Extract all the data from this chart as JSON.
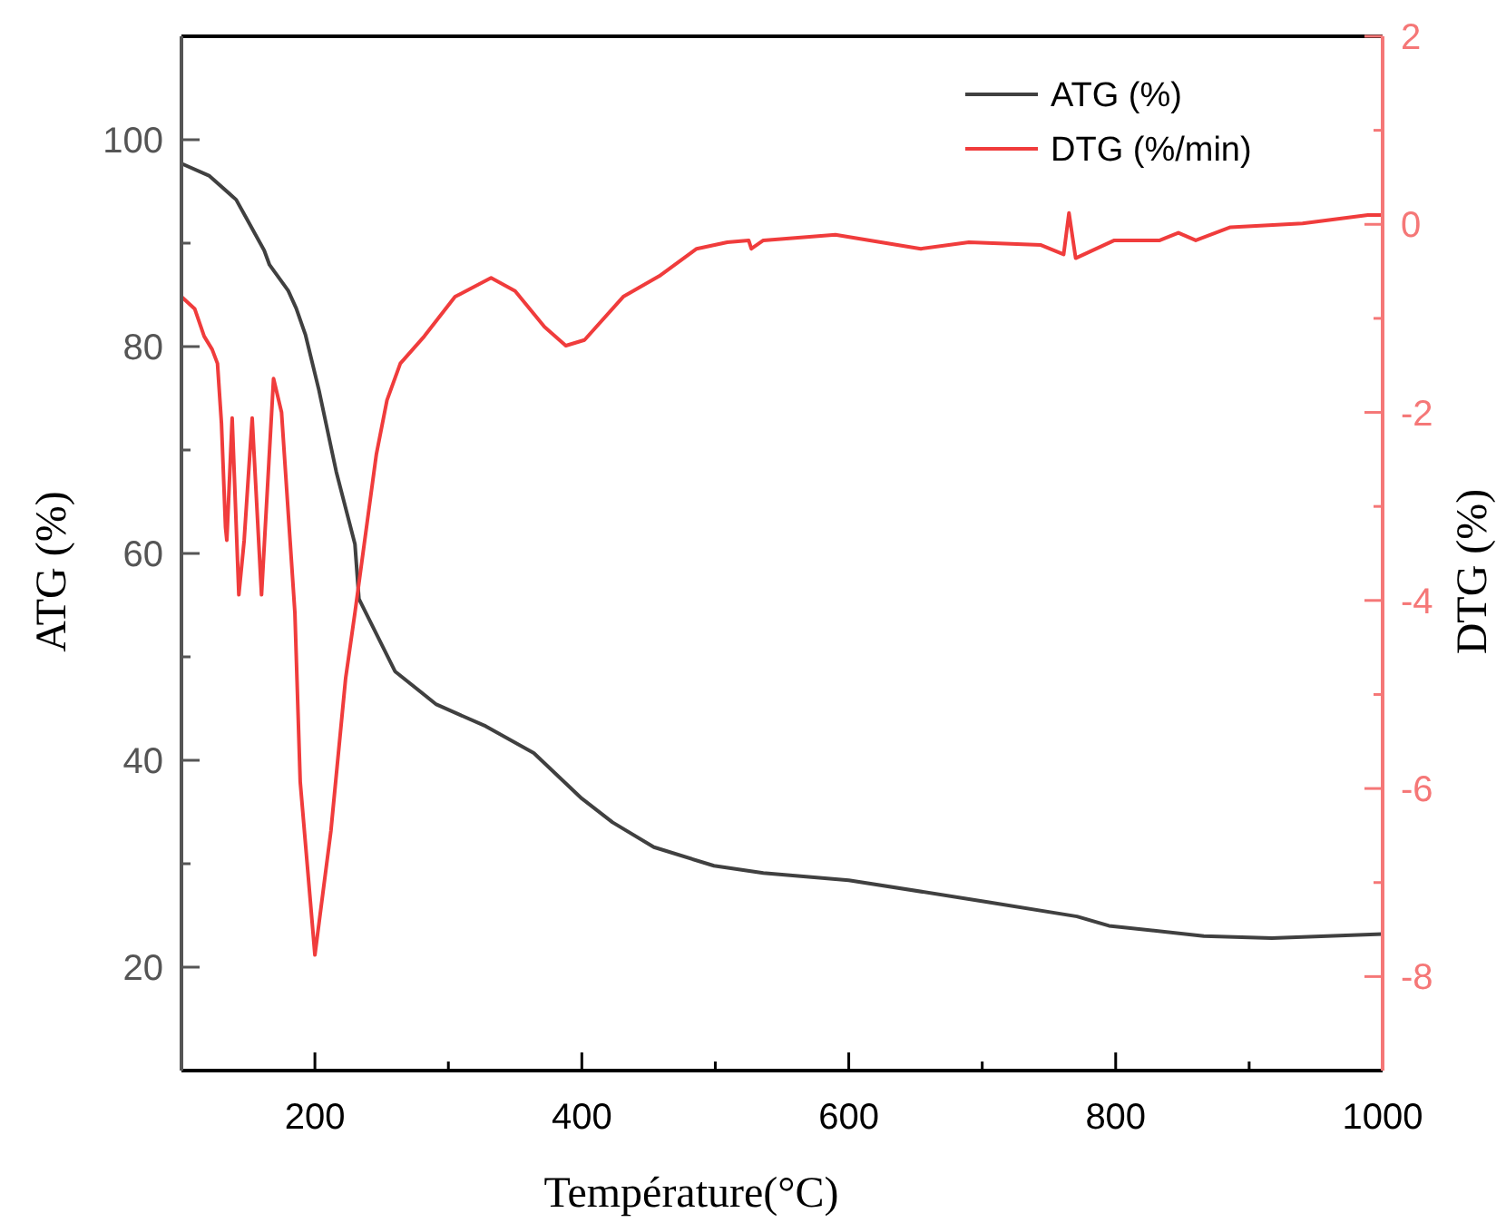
{
  "chart_data": {
    "type": "line",
    "xlabel": "Température(°C)",
    "ylabel": "ATG (%)",
    "y2label": "DTG (%)",
    "xlim": [
      100,
      1000
    ],
    "xticks": [
      200,
      {
        "value": 300,
        "label": null
      },
      400,
      {
        "value": 500,
        "label": null
      },
      600,
      {
        "value": 700,
        "label": null
      },
      800,
      {
        "value": 900,
        "label": null
      },
      1000
    ],
    "ylim": [
      10,
      110
    ],
    "yticks": [
      20,
      {
        "value": 30,
        "label": null
      },
      40,
      {
        "value": 50,
        "label": null
      },
      60,
      {
        "value": 70,
        "label": null
      },
      80,
      {
        "value": 90,
        "label": null
      },
      100
    ],
    "y2lim": [
      -9,
      2
    ],
    "y2ticks": [
      -8,
      {
        "value": -7,
        "label": null
      },
      -6,
      {
        "value": -5,
        "label": null
      },
      -4,
      {
        "value": -3,
        "label": null
      },
      -2,
      {
        "value": -1,
        "label": null
      },
      0,
      {
        "value": 1,
        "label": null
      },
      2
    ],
    "legend": "top right",
    "marker": "none",
    "line_style": "solid",
    "grid": false,
    "series": [
      {
        "name": "ATG (%)",
        "color": "#404040",
        "axis": "y",
        "x": [
          100,
          121,
          141,
          150,
          162,
          166,
          180,
          186,
          193,
          203,
          216,
          230,
          233,
          260,
          291,
          328,
          364,
          400,
          423,
          454,
          499,
          536,
          600,
          704,
          771,
          795,
          866,
          917,
          1000
        ],
        "values": [
          97.7,
          96.5,
          94.2,
          92.1,
          89.3,
          87.9,
          85.4,
          83.7,
          81.1,
          75.8,
          67.9,
          60.9,
          55.6,
          48.6,
          45.4,
          43.3,
          40.7,
          36.3,
          34.0,
          31.6,
          29.8,
          29.1,
          28.4,
          26.3,
          24.9,
          24.0,
          23.0,
          22.8,
          23.2
        ]
      },
      {
        "name": "DTG (%/min)",
        "color": "#f03c3c",
        "axis": "y2",
        "x": [
          100,
          110,
          117,
          123,
          127,
          130,
          133,
          134,
          138,
          143,
          147,
          153,
          160,
          169,
          175,
          185,
          189,
          200,
          212,
          223,
          230,
          246,
          254,
          264,
          282,
          305,
          332,
          350,
          372,
          388,
          402,
          431,
          458,
          486,
          509,
          525,
          527,
          536,
          590,
          654,
          690,
          744,
          761,
          765,
          770,
          799,
          833,
          847,
          860,
          886,
          940,
          989,
          1000
        ],
        "values": [
          -0.77,
          -0.9,
          -1.19,
          -1.33,
          -1.48,
          -2.12,
          -3.22,
          -3.36,
          -2.06,
          -3.94,
          -3.36,
          -2.06,
          -3.94,
          -1.64,
          -2.0,
          -4.13,
          -5.93,
          -7.77,
          -6.45,
          -4.83,
          -4.13,
          -2.45,
          -1.87,
          -1.48,
          -1.19,
          -0.77,
          -0.57,
          -0.71,
          -1.09,
          -1.29,
          -1.23,
          -0.77,
          -0.55,
          -0.26,
          -0.19,
          -0.17,
          -0.26,
          -0.17,
          -0.11,
          -0.26,
          -0.19,
          -0.22,
          -0.32,
          0.12,
          -0.36,
          -0.17,
          -0.17,
          -0.09,
          -0.17,
          -0.03,
          0.01,
          0.1,
          0.1
        ]
      }
    ]
  }
}
